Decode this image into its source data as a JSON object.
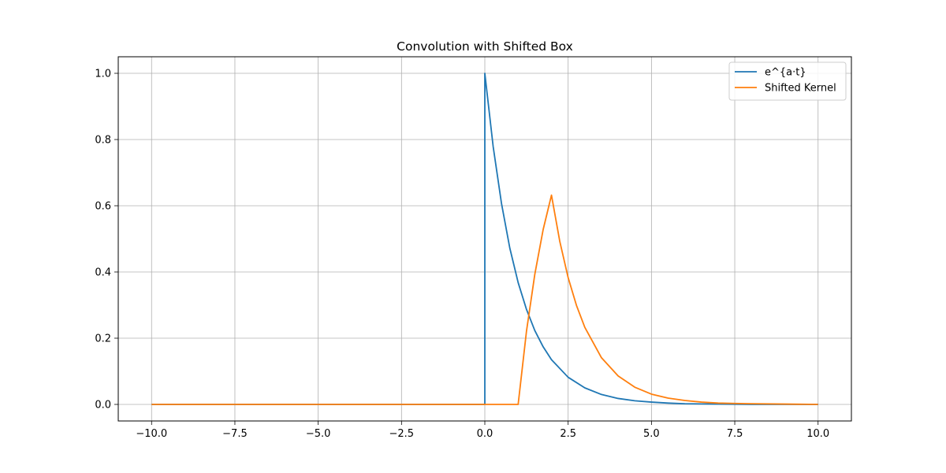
{
  "chart_data": {
    "type": "line",
    "title": "Convolution with Shifted Box",
    "xlabel": "",
    "ylabel": "",
    "xlim": [
      -11,
      11
    ],
    "ylim": [
      -0.05,
      1.05
    ],
    "xticks": [
      -10.0,
      -7.5,
      -5.0,
      -2.5,
      0.0,
      2.5,
      5.0,
      7.5,
      10.0
    ],
    "xtick_labels": [
      "−10.0",
      "−7.5",
      "−5.0",
      "−2.5",
      "0.0",
      "2.5",
      "5.0",
      "7.5",
      "10.0"
    ],
    "yticks": [
      0.0,
      0.2,
      0.4,
      0.6,
      0.8,
      1.0
    ],
    "ytick_labels": [
      "0.0",
      "0.2",
      "0.4",
      "0.6",
      "0.8",
      "1.0"
    ],
    "grid": true,
    "legend_position": "top-right",
    "series": [
      {
        "name": "e^{a·t}",
        "color": "#1f77b4",
        "x": [
          -10,
          -5,
          0,
          0,
          0.25,
          0.5,
          0.75,
          1.0,
          1.25,
          1.5,
          1.75,
          2.0,
          2.5,
          3.0,
          3.5,
          4.0,
          4.5,
          5.0,
          5.5,
          6.0,
          7.0,
          8.0,
          9.0,
          10.0
        ],
        "y": [
          0,
          0,
          0,
          1.0,
          0.779,
          0.607,
          0.472,
          0.368,
          0.287,
          0.223,
          0.174,
          0.135,
          0.082,
          0.05,
          0.03,
          0.018,
          0.011,
          0.007,
          0.004,
          0.002,
          0.001,
          0.0,
          0.0,
          0.0
        ]
      },
      {
        "name": "Shifted Kernel",
        "color": "#ff7f0e",
        "x": [
          -10,
          -5,
          0,
          1.0,
          1.25,
          1.5,
          1.75,
          2.0,
          2.25,
          2.5,
          2.75,
          3.0,
          3.5,
          4.0,
          4.5,
          5.0,
          5.5,
          6.0,
          6.5,
          7.0,
          7.5,
          8.0,
          9.0,
          10.0
        ],
        "y": [
          0,
          0,
          0,
          0,
          0.221,
          0.393,
          0.528,
          0.632,
          0.492,
          0.383,
          0.299,
          0.233,
          0.141,
          0.086,
          0.052,
          0.031,
          0.019,
          0.012,
          0.007,
          0.004,
          0.003,
          0.002,
          0.001,
          0.0
        ]
      }
    ]
  }
}
